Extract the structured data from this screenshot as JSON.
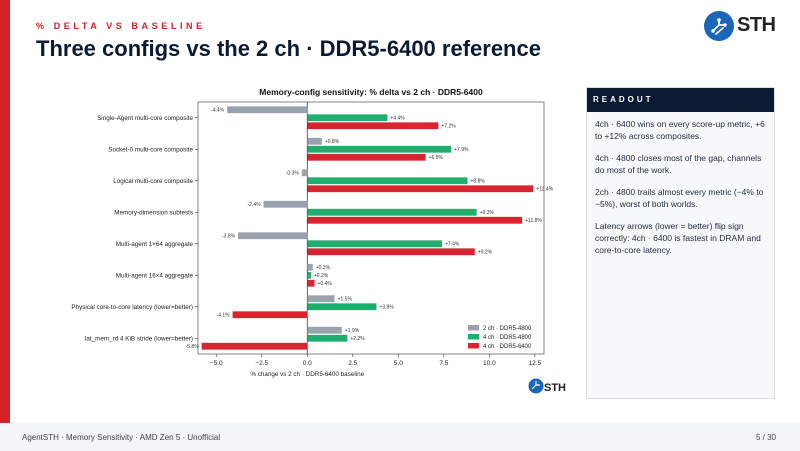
{
  "slide": {
    "kicker": "% DELTA VS BASELINE",
    "title": "Three configs vs the 2 ch · DDR5-6400 reference",
    "logo_text": "STH",
    "footer_left": "AgentSTH · Memory Sensitivity · AMD Zen 5 · Unofficial",
    "page_number": "5 / 30"
  },
  "readout": {
    "heading": "READOUT",
    "paragraphs": [
      "4ch · 6400 wins on every score-up metric, +6 to +12% across composites.",
      "4ch · 4800 closes most of the gap, channels do most of the work.",
      "2ch · 4800 trails almost every metric (−4% to −5%), worst of both worlds.",
      "Latency arrows (lower = better) flip sign correctly: 4ch · 6400 is fastest in DRAM and core-to-core latency."
    ]
  },
  "colors": {
    "accent_red": "#d71f27",
    "navy": "#0b1a33",
    "series_gray": "#9aa3ad",
    "series_green": "#1fae6e",
    "series_red": "#d72630"
  },
  "chart_data": {
    "type": "bar",
    "orientation": "horizontal",
    "title": "Memory-config sensitivity: % delta vs 2 ch · DDR5-6400",
    "xlabel": "% change vs 2 ch · DDR5-6400 baseline",
    "ylabel": "",
    "xlim": [
      -6.0,
      13.0
    ],
    "xticks": [
      -5.0,
      -2.5,
      0.0,
      2.5,
      5.0,
      7.5,
      10.0,
      12.5
    ],
    "xtick_labels": [
      "−5.0",
      "−2.5",
      "0.0",
      "2.5",
      "5.0",
      "7.5",
      "10.0",
      "12.5"
    ],
    "grid": false,
    "legend_position": "lower-right",
    "categories": [
      "Single-Agent multi-core composite",
      "Socket-0 multi-core composite",
      "Logical multi-core composite",
      "Memory-dimension subtests",
      "Multi-agent 1×64 aggregate",
      "Multi-agent 16×4 aggregate",
      "Physical core-to-core latency (lower=better)",
      "lat_mem_rd 4 KiB stride (lower=better)"
    ],
    "series": [
      {
        "name": "2 ch · DDR5-4800",
        "color": "#9aa3ad",
        "values": [
          -4.4,
          0.8,
          -0.3,
          -2.4,
          -3.8,
          0.3,
          1.5,
          1.9
        ],
        "labels": [
          "-4.4%",
          "+0.8%",
          "-0.3%",
          "-2.4%",
          "-3.8%",
          "+0.3%",
          "+1.5%",
          "+1.9%"
        ]
      },
      {
        "name": "4 ch · DDR5-4800",
        "color": "#1fae6e",
        "values": [
          4.4,
          7.9,
          8.8,
          9.3,
          7.4,
          0.2,
          3.8,
          2.2
        ],
        "labels": [
          "+4.4%",
          "+7.9%",
          "+8.8%",
          "+9.3%",
          "+7.4%",
          "+0.2%",
          "+3.8%",
          "+2.2%"
        ]
      },
      {
        "name": "4 ch · DDR5-6400",
        "color": "#d72630",
        "values": [
          7.2,
          6.5,
          12.4,
          11.8,
          9.2,
          0.4,
          -4.1,
          -5.8
        ],
        "labels": [
          "+7.2%",
          "+6.5%",
          "+12.4%",
          "+11.8%",
          "+9.2%",
          "+0.4%",
          "-4.1%",
          "-5.8%"
        ]
      }
    ]
  }
}
